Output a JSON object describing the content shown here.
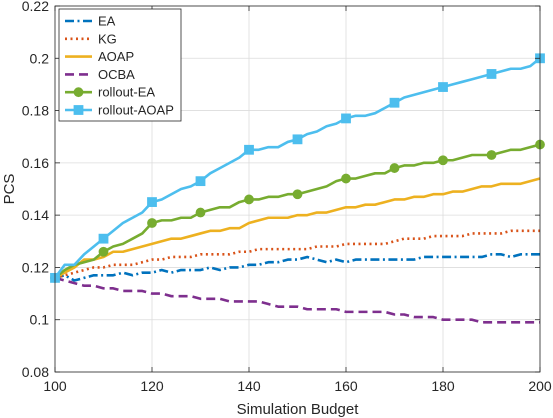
{
  "chart_data": {
    "type": "line",
    "title": "",
    "xlabel": "Simulation Budget",
    "ylabel": "PCS",
    "xlim": [
      100,
      200
    ],
    "ylim": [
      0.08,
      0.22
    ],
    "xticks": [
      100,
      120,
      140,
      160,
      180,
      200
    ],
    "yticks": [
      0.08,
      0.1,
      0.12,
      0.14,
      0.16,
      0.18,
      0.2,
      0.22
    ],
    "ytick_labels": [
      "0.08",
      "0.1",
      "0.12",
      "0.14",
      "0.16",
      "0.18",
      "0.2",
      "0.22"
    ],
    "grid": true,
    "legend_position": "top-left",
    "x": [
      100,
      102,
      104,
      106,
      108,
      110,
      112,
      114,
      116,
      118,
      120,
      122,
      124,
      126,
      128,
      130,
      132,
      134,
      136,
      138,
      140,
      142,
      144,
      146,
      148,
      150,
      152,
      154,
      156,
      158,
      160,
      162,
      164,
      166,
      168,
      170,
      172,
      174,
      176,
      178,
      180,
      182,
      184,
      186,
      188,
      190,
      192,
      194,
      196,
      198,
      200
    ],
    "series": [
      {
        "name": "EA",
        "color": "#0072BD",
        "dash": "dashdot",
        "marker": "none",
        "values": [
          0.116,
          0.117,
          0.115,
          0.116,
          0.117,
          0.117,
          0.117,
          0.118,
          0.117,
          0.118,
          0.118,
          0.119,
          0.118,
          0.119,
          0.119,
          0.119,
          0.12,
          0.119,
          0.12,
          0.12,
          0.121,
          0.121,
          0.122,
          0.122,
          0.123,
          0.123,
          0.124,
          0.123,
          0.122,
          0.123,
          0.122,
          0.123,
          0.123,
          0.123,
          0.123,
          0.123,
          0.123,
          0.123,
          0.124,
          0.124,
          0.124,
          0.124,
          0.124,
          0.124,
          0.124,
          0.125,
          0.125,
          0.124,
          0.125,
          0.125,
          0.125
        ]
      },
      {
        "name": "KG",
        "color": "#D95319",
        "dash": "dot",
        "marker": "none",
        "values": [
          0.116,
          0.117,
          0.118,
          0.119,
          0.12,
          0.12,
          0.121,
          0.121,
          0.121,
          0.122,
          0.123,
          0.123,
          0.124,
          0.124,
          0.124,
          0.125,
          0.125,
          0.125,
          0.125,
          0.126,
          0.126,
          0.127,
          0.127,
          0.127,
          0.127,
          0.127,
          0.127,
          0.128,
          0.128,
          0.128,
          0.129,
          0.129,
          0.129,
          0.129,
          0.129,
          0.13,
          0.131,
          0.131,
          0.131,
          0.132,
          0.132,
          0.132,
          0.132,
          0.133,
          0.133,
          0.133,
          0.133,
          0.134,
          0.134,
          0.134,
          0.134
        ]
      },
      {
        "name": "AOAP",
        "color": "#EDB120",
        "dash": "solid",
        "marker": "none",
        "values": [
          0.116,
          0.118,
          0.12,
          0.123,
          0.123,
          0.124,
          0.126,
          0.126,
          0.127,
          0.128,
          0.129,
          0.13,
          0.131,
          0.131,
          0.132,
          0.133,
          0.134,
          0.134,
          0.135,
          0.135,
          0.137,
          0.138,
          0.139,
          0.139,
          0.139,
          0.14,
          0.14,
          0.141,
          0.141,
          0.142,
          0.143,
          0.143,
          0.144,
          0.144,
          0.145,
          0.146,
          0.146,
          0.147,
          0.147,
          0.148,
          0.148,
          0.149,
          0.149,
          0.15,
          0.151,
          0.151,
          0.152,
          0.152,
          0.152,
          0.153,
          0.154
        ]
      },
      {
        "name": "OCBA",
        "color": "#7E2F8E",
        "dash": "dash",
        "marker": "none",
        "values": [
          0.116,
          0.115,
          0.114,
          0.113,
          0.113,
          0.112,
          0.112,
          0.111,
          0.111,
          0.111,
          0.11,
          0.11,
          0.109,
          0.109,
          0.109,
          0.108,
          0.108,
          0.108,
          0.107,
          0.107,
          0.107,
          0.107,
          0.106,
          0.105,
          0.105,
          0.105,
          0.104,
          0.104,
          0.104,
          0.104,
          0.103,
          0.103,
          0.103,
          0.103,
          0.103,
          0.102,
          0.102,
          0.101,
          0.101,
          0.101,
          0.1,
          0.1,
          0.1,
          0.1,
          0.099,
          0.099,
          0.099,
          0.099,
          0.099,
          0.099,
          0.099
        ]
      },
      {
        "name": "rollout-EA",
        "color": "#77AC30",
        "dash": "solid",
        "marker": "circle",
        "values": [
          0.116,
          0.119,
          0.121,
          0.122,
          0.123,
          0.126,
          0.128,
          0.129,
          0.131,
          0.133,
          0.137,
          0.138,
          0.138,
          0.139,
          0.139,
          0.141,
          0.142,
          0.143,
          0.143,
          0.145,
          0.146,
          0.146,
          0.147,
          0.147,
          0.148,
          0.148,
          0.149,
          0.15,
          0.151,
          0.153,
          0.154,
          0.154,
          0.155,
          0.156,
          0.156,
          0.158,
          0.159,
          0.159,
          0.16,
          0.16,
          0.161,
          0.161,
          0.162,
          0.163,
          0.163,
          0.163,
          0.164,
          0.165,
          0.165,
          0.166,
          0.167
        ]
      },
      {
        "name": "rollout-AOAP",
        "color": "#4DBEEE",
        "dash": "solid",
        "marker": "square",
        "values": [
          0.116,
          0.121,
          0.121,
          0.125,
          0.128,
          0.131,
          0.134,
          0.137,
          0.139,
          0.141,
          0.145,
          0.146,
          0.148,
          0.15,
          0.151,
          0.153,
          0.156,
          0.158,
          0.16,
          0.162,
          0.165,
          0.165,
          0.166,
          0.166,
          0.168,
          0.169,
          0.171,
          0.172,
          0.174,
          0.175,
          0.177,
          0.178,
          0.178,
          0.179,
          0.181,
          0.183,
          0.185,
          0.186,
          0.187,
          0.188,
          0.189,
          0.19,
          0.191,
          0.192,
          0.193,
          0.194,
          0.195,
          0.196,
          0.196,
          0.197,
          0.2
        ]
      }
    ]
  }
}
